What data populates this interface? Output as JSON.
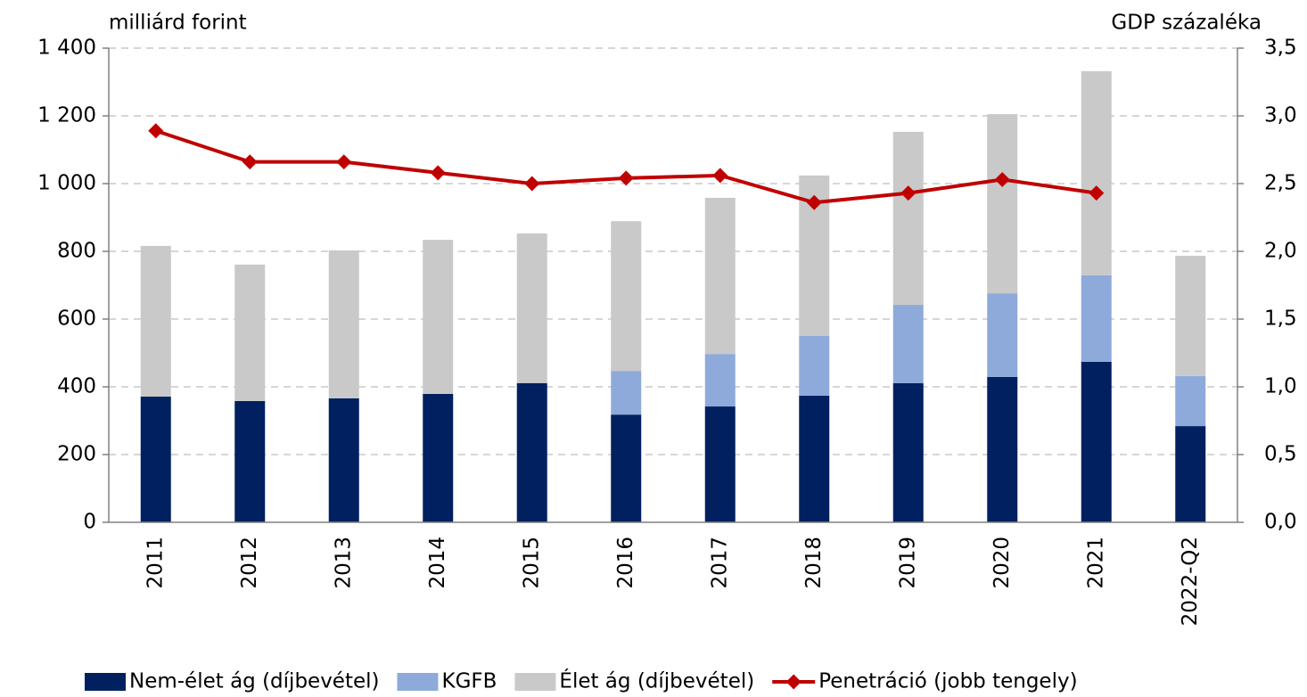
{
  "chart_data": {
    "type": "bar",
    "y_label": "milliárd forint",
    "y2_label": "GDP százaléka",
    "categories": [
      "2011",
      "2012",
      "2013",
      "2014",
      "2015",
      "2016",
      "2017",
      "2018",
      "2019",
      "2020",
      "2021",
      "2022-Q2"
    ],
    "stacked": true,
    "grid": true,
    "legend": "bottom",
    "ylim": [
      0,
      1400
    ],
    "yticks": [
      0,
      200,
      400,
      600,
      800,
      {
        "value": 1000,
        "label": "1 000"
      },
      {
        "value": 1200,
        "label": "1 200"
      },
      {
        "value": 1400,
        "label": "1 400"
      }
    ],
    "y2lim": [
      0,
      3.5
    ],
    "y2ticks": [
      {
        "value": 0,
        "label": "0,0"
      },
      {
        "value": 0.5,
        "label": "0,5"
      },
      {
        "value": 1,
        "label": "1,0"
      },
      {
        "value": 1.5,
        "label": "1,5"
      },
      {
        "value": 2,
        "label": "2,0"
      },
      {
        "value": 2.5,
        "label": "2,5"
      },
      {
        "value": 3,
        "label": "3,0"
      },
      {
        "value": 3.5,
        "label": "3,5"
      }
    ],
    "series": [
      {
        "name": "Nem-élet ág (díjbevétel)",
        "color": "#002060",
        "type": "bar",
        "values": [
          371,
          358,
          366,
          379,
          411,
          318,
          342,
          374,
          411,
          429,
          474,
          284
        ]
      },
      {
        "name": "KGFB",
        "color": "#8eaadb",
        "type": "bar",
        "values": [
          null,
          null,
          null,
          null,
          null,
          129,
          155,
          176,
          231,
          247,
          255,
          148
        ]
      },
      {
        "name": "Élet ág (díjbevétel)",
        "color": "#c9c9c9",
        "type": "bar",
        "values": [
          445,
          403,
          437,
          455,
          442,
          442,
          461,
          474,
          511,
          529,
          603,
          355
        ]
      },
      {
        "name": "Penetráció (jobb tengely)",
        "color": "#c00000",
        "type": "line",
        "axis": "y2",
        "values": [
          2.89,
          2.66,
          2.66,
          2.58,
          2.5,
          2.54,
          2.56,
          2.36,
          2.43,
          2.53,
          2.43,
          null
        ]
      }
    ]
  }
}
